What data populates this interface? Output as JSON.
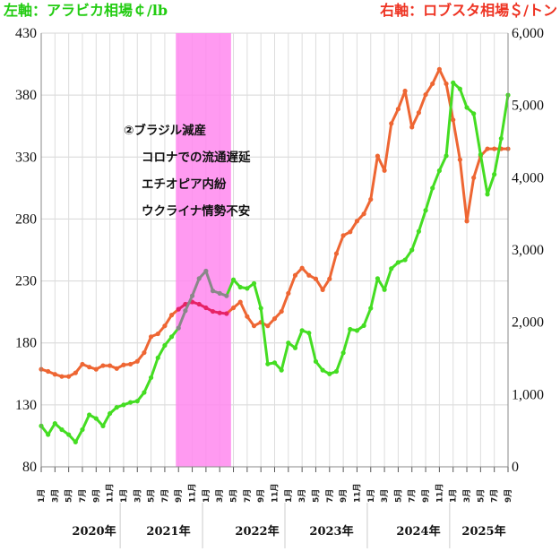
{
  "chart_data": {
    "type": "line",
    "left_axis_title": "左軸：アラビカ相場￠/lb",
    "right_axis_title": "右軸：ロブスタ相場＄/トン",
    "left_ylim": [
      80,
      430
    ],
    "left_ticks": [
      "430",
      "380",
      "330",
      "280",
      "230",
      "180",
      "130",
      "80"
    ],
    "right_ylim": [
      0,
      6000
    ],
    "right_ticks": [
      "6,000",
      "5,000",
      "4,000",
      "3,000",
      "2,000",
      "1,000",
      "0"
    ],
    "months": [
      "1月",
      "3月",
      "5月",
      "7月",
      "9月",
      "11月",
      "1月",
      "3月",
      "5月",
      "7月",
      "9月",
      "11月",
      "1月",
      "3月",
      "5月",
      "7月",
      "9月",
      "11月",
      "1月",
      "3月",
      "5月",
      "7月",
      "9月",
      "11月",
      "1月",
      "3月",
      "5月",
      "7月",
      "9月",
      "11月",
      "1月",
      "3月",
      "5月",
      "7月",
      "9月"
    ],
    "years": [
      "2020年",
      "2021年",
      "2022年",
      "2023年",
      "2024年",
      "2025年"
    ],
    "annotation_lines": [
      "②ブラジル減産",
      "コロナでの流通遅延",
      "エチオピア内紛",
      "ウクライナ情勢不安"
    ],
    "x_range": [
      "2020-01",
      "2025-09"
    ],
    "highlight_period": [
      "2021-09",
      "2022-04"
    ],
    "grid": true,
    "series": [
      {
        "axis": "left",
        "color": "#44dd22",
        "highlight_color": "#888888",
        "x": [
          "2020-01",
          "2020-02",
          "2020-03",
          "2020-04",
          "2020-05",
          "2020-06",
          "2020-07",
          "2020-08",
          "2020-09",
          "2020-10",
          "2020-11",
          "2020-12",
          "2021-01",
          "2021-02",
          "2021-03",
          "2021-04",
          "2021-05",
          "2021-06",
          "2021-07",
          "2021-08",
          "2021-09",
          "2021-10",
          "2021-11",
          "2021-12",
          "2022-01",
          "2022-02",
          "2022-03",
          "2022-04",
          "2022-05",
          "2022-06",
          "2022-07",
          "2022-08",
          "2022-09",
          "2022-10",
          "2022-11",
          "2022-12",
          "2023-01",
          "2023-02",
          "2023-03",
          "2023-04",
          "2023-05",
          "2023-06",
          "2023-07",
          "2023-08",
          "2023-09",
          "2023-10",
          "2023-11",
          "2023-12",
          "2024-01",
          "2024-02",
          "2024-03",
          "2024-04",
          "2024-05",
          "2024-06",
          "2024-07",
          "2024-08",
          "2024-09",
          "2024-10",
          "2024-11",
          "2024-12",
          "2025-01",
          "2025-02",
          "2025-03",
          "2025-04",
          "2025-05",
          "2025-06",
          "2025-07",
          "2025-08",
          "2025-09"
        ],
        "values": [
          113,
          106,
          115,
          110,
          106,
          100,
          110,
          122,
          119,
          113,
          123,
          128,
          130,
          132,
          133,
          140,
          152,
          168,
          178,
          185,
          192,
          206,
          218,
          232,
          238,
          222,
          220,
          218,
          231,
          225,
          224,
          228,
          208,
          163,
          164,
          158,
          180,
          176,
          190,
          188,
          165,
          158,
          155,
          157,
          172,
          191,
          190,
          194,
          208,
          232,
          223,
          240,
          245,
          247,
          255,
          270,
          287,
          305,
          319,
          331,
          390,
          385,
          370,
          365,
          332,
          300,
          316,
          345,
          380
        ]
      },
      {
        "axis": "right",
        "color": "#ee6633",
        "highlight_color": "#e62266",
        "x": [
          "2020-01",
          "2020-02",
          "2020-03",
          "2020-04",
          "2020-05",
          "2020-06",
          "2020-07",
          "2020-08",
          "2020-09",
          "2020-10",
          "2020-11",
          "2020-12",
          "2021-01",
          "2021-02",
          "2021-03",
          "2021-04",
          "2021-05",
          "2021-06",
          "2021-07",
          "2021-08",
          "2021-09",
          "2021-10",
          "2021-11",
          "2021-12",
          "2022-01",
          "2022-02",
          "2022-03",
          "2022-04",
          "2022-05",
          "2022-06",
          "2022-07",
          "2022-08",
          "2022-09",
          "2022-10",
          "2022-11",
          "2022-12",
          "2023-01",
          "2023-02",
          "2023-03",
          "2023-04",
          "2023-05",
          "2023-06",
          "2023-07",
          "2023-08",
          "2023-09",
          "2023-10",
          "2023-11",
          "2023-12",
          "2024-01",
          "2024-02",
          "2024-03",
          "2024-04",
          "2024-05",
          "2024-06",
          "2024-07",
          "2024-08",
          "2024-09",
          "2024-10",
          "2024-11",
          "2024-12",
          "2025-01",
          "2025-02",
          "2025-03",
          "2025-04",
          "2025-05",
          "2025-06",
          "2025-07",
          "2025-08",
          "2025-09"
        ],
        "values": [
          1350,
          1320,
          1280,
          1250,
          1250,
          1300,
          1420,
          1380,
          1350,
          1400,
          1400,
          1360,
          1410,
          1420,
          1460,
          1580,
          1800,
          1840,
          1950,
          2100,
          2180,
          2250,
          2280,
          2250,
          2200,
          2150,
          2130,
          2120,
          2200,
          2280,
          2080,
          1950,
          2000,
          1950,
          2050,
          2150,
          2400,
          2650,
          2750,
          2650,
          2600,
          2450,
          2600,
          2950,
          3200,
          3250,
          3400,
          3500,
          3700,
          4300,
          4100,
          4750,
          4950,
          5200,
          4700,
          4900,
          5150,
          5300,
          5500,
          5300,
          4800,
          4250,
          3400,
          4000,
          4300,
          4400,
          4400,
          4400,
          4400
        ]
      }
    ]
  }
}
